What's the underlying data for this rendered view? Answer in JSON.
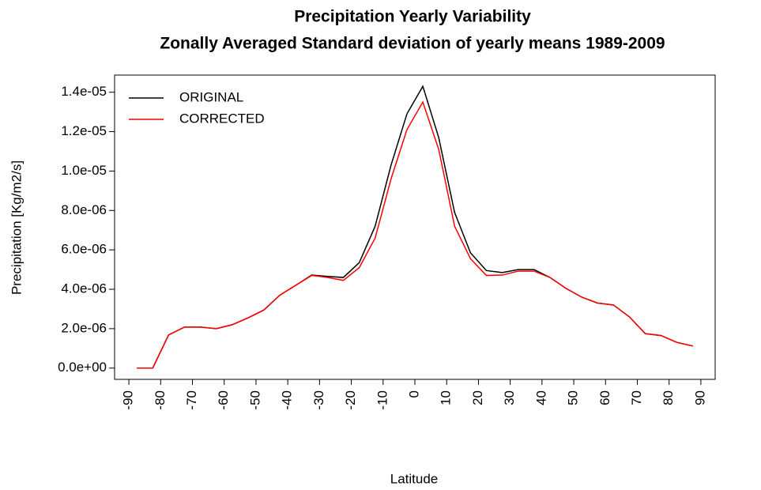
{
  "chart_data": {
    "type": "line",
    "title": "Precipitation Yearly Variability",
    "subtitle": "Zonally Averaged Standard deviation of yearly means 1989-2009",
    "xlabel": "Latitude",
    "ylabel": "Precipitation [Kg/m2/s]",
    "x": [
      -87.5,
      -82.5,
      -77.5,
      -72.5,
      -67.5,
      -62.5,
      -57.5,
      -52.5,
      -47.5,
      -42.5,
      -37.5,
      -32.5,
      -27.5,
      -22.5,
      -17.5,
      -12.5,
      -7.5,
      -2.5,
      2.5,
      7.5,
      12.5,
      17.5,
      22.5,
      27.5,
      32.5,
      37.5,
      42.5,
      47.5,
      52.5,
      57.5,
      62.5,
      67.5,
      72.5,
      77.5,
      82.5,
      87.5
    ],
    "series": [
      {
        "name": "ORIGINAL",
        "color": "#000000",
        "values": [
          0,
          0,
          1.68e-06,
          2.08e-06,
          2.08e-06,
          2e-06,
          2.2e-06,
          2.55e-06,
          2.95e-06,
          3.7e-06,
          4.2e-06,
          4.72e-06,
          4.65e-06,
          4.6e-06,
          5.35e-06,
          7.2e-06,
          1.03e-05,
          1.29e-05,
          1.43e-05,
          1.17e-05,
          7.9e-06,
          5.85e-06,
          4.95e-06,
          4.85e-06,
          5e-06,
          5e-06,
          4.6e-06,
          4.05e-06,
          3.6e-06,
          3.3e-06,
          3.2e-06,
          2.6e-06,
          1.75e-06,
          1.65e-06,
          1.3e-06,
          1.12e-06
        ]
      },
      {
        "name": "CORRECTED",
        "color": "#ff0000",
        "values": [
          0,
          0,
          1.68e-06,
          2.08e-06,
          2.08e-06,
          2e-06,
          2.2e-06,
          2.55e-06,
          2.95e-06,
          3.7e-06,
          4.2e-06,
          4.7e-06,
          4.6e-06,
          4.45e-06,
          5.1e-06,
          6.6e-06,
          9.6e-06,
          1.21e-05,
          1.35e-05,
          1.11e-05,
          7.2e-06,
          5.55e-06,
          4.7e-06,
          4.72e-06,
          4.92e-06,
          4.92e-06,
          4.6e-06,
          4.05e-06,
          3.6e-06,
          3.3e-06,
          3.2e-06,
          2.6e-06,
          1.75e-06,
          1.65e-06,
          1.3e-06,
          1.12e-06
        ]
      }
    ],
    "xlim": [
      -94.5,
      94.5
    ],
    "xticks": [
      -90,
      -80,
      -70,
      -60,
      -50,
      -40,
      -30,
      -20,
      -10,
      0,
      10,
      20,
      30,
      40,
      50,
      60,
      70,
      80,
      90
    ],
    "ylim": [
      -5.72e-07,
      1.487e-05
    ],
    "yticks": [
      {
        "value": 0,
        "label": "0.0e+00"
      },
      {
        "value": 2e-06,
        "label": "2.0e-06"
      },
      {
        "value": 4e-06,
        "label": "4.0e-06"
      },
      {
        "value": 6e-06,
        "label": "6.0e-06"
      },
      {
        "value": 8e-06,
        "label": "8.0e-06"
      },
      {
        "value": 1e-05,
        "label": "1.0e-05"
      },
      {
        "value": 1.2e-05,
        "label": "1.2e-05"
      },
      {
        "value": 1.4e-05,
        "label": "1.4e-05"
      }
    ],
    "legend": "topleft"
  }
}
